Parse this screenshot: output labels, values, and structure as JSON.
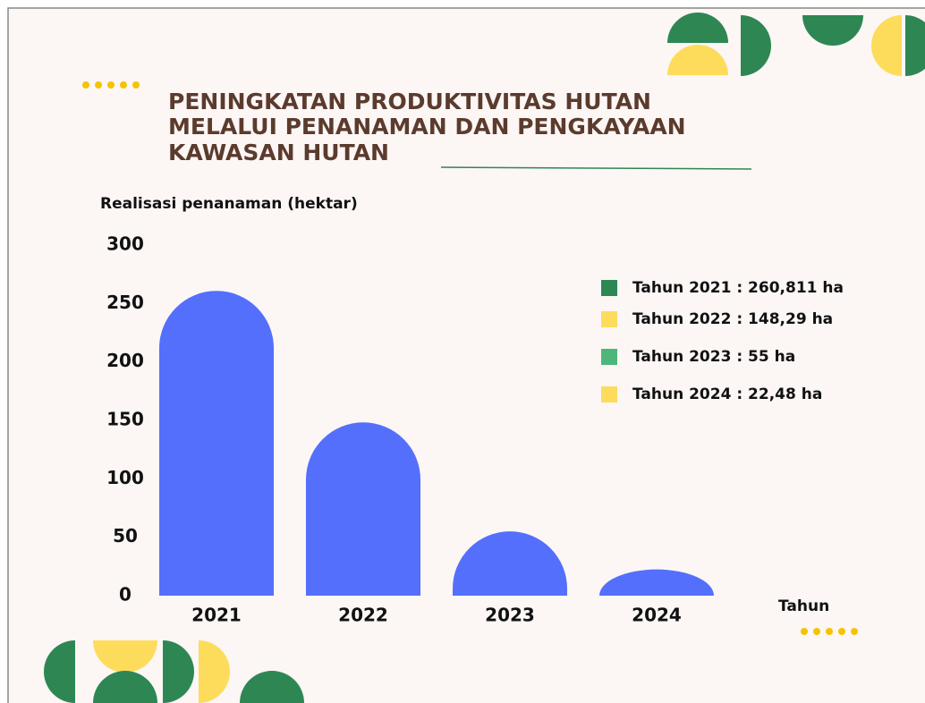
{
  "chart_data": {
    "type": "bar",
    "title": [
      "PENINGKATAN PRODUKTIVITAS HUTAN",
      "MELALUI PENANAMAN DAN PENGKAYAAN",
      "KAWASAN HUTAN"
    ],
    "y_label": "Realisasi penanaman (hektar)",
    "x_label": "Tahun",
    "categories": [
      "2021",
      "2022",
      "2023",
      "2024"
    ],
    "values": [
      260.811,
      148.29,
      55,
      22.48
    ],
    "value_labels": [
      "Tahun 2021 : 260,811 ha",
      "Tahun 2022 : 148,29 ha",
      "Tahun 2023 : 55 ha",
      "Tahun 2024 : 22,48 ha"
    ],
    "legend_colors": [
      "#2e8753",
      "#fddc5c",
      "#4db67a",
      "#fddc5c"
    ],
    "color": "#546ffc",
    "ylim": [
      0,
      300
    ],
    "yticks": [
      0,
      50,
      100,
      150,
      200,
      250,
      300
    ],
    "grid": false
  }
}
